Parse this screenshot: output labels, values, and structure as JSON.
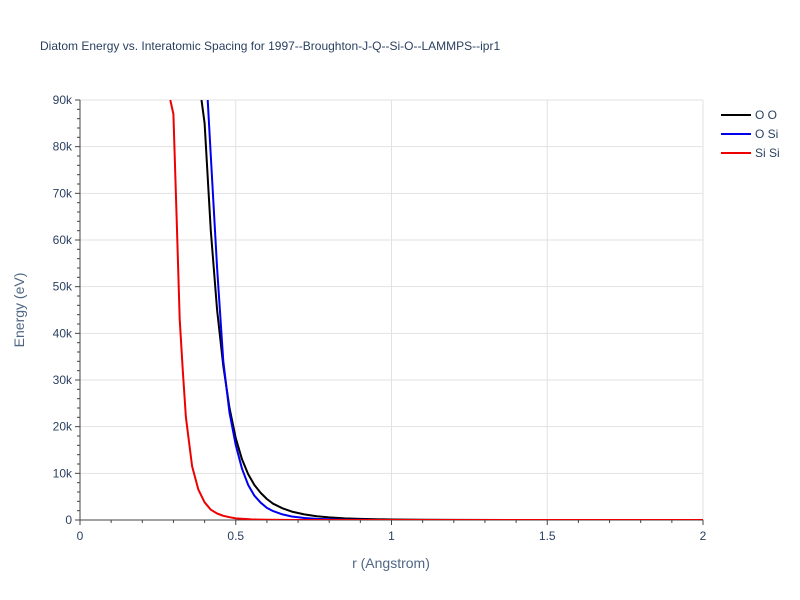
{
  "chart_data": {
    "type": "line",
    "title": "Diatom Energy vs. Interatomic Spacing for 1997--Broughton-J-Q--Si-O--LAMMPS--ipr1",
    "xlabel": "r (Angstrom)",
    "ylabel": "Energy (eV)",
    "xlim": [
      0,
      2
    ],
    "ylim": [
      0,
      90000
    ],
    "x_ticks": [
      0,
      0.5,
      1,
      1.5,
      2
    ],
    "x_tick_labels": [
      "0",
      "0.5",
      "1",
      "1.5",
      "2"
    ],
    "y_ticks": [
      0,
      10000,
      20000,
      30000,
      40000,
      50000,
      60000,
      70000,
      80000,
      90000
    ],
    "y_tick_labels": [
      "0",
      "10k",
      "20k",
      "30k",
      "40k",
      "50k",
      "60k",
      "70k",
      "80k",
      "90k"
    ],
    "grid": true,
    "legend_position": "top-right",
    "series": [
      {
        "name": "O O",
        "color": "#000000",
        "x": [
          0.39,
          0.4,
          0.42,
          0.44,
          0.46,
          0.48,
          0.5,
          0.52,
          0.54,
          0.56,
          0.58,
          0.6,
          0.62,
          0.65,
          0.68,
          0.72,
          0.76,
          0.8,
          0.85,
          0.9,
          1.0,
          1.1,
          1.2,
          1.4,
          1.6,
          1.8,
          2.0
        ],
        "y": [
          90000,
          85000,
          62000,
          45000,
          33000,
          24000,
          17500,
          13000,
          9800,
          7500,
          5800,
          4500,
          3500,
          2500,
          1800,
          1200,
          800,
          550,
          350,
          230,
          110,
          55,
          30,
          10,
          4,
          2,
          1
        ]
      },
      {
        "name": "O Si",
        "color": "#0000ee",
        "x": [
          0.41,
          0.42,
          0.44,
          0.46,
          0.48,
          0.5,
          0.52,
          0.54,
          0.56,
          0.58,
          0.6,
          0.62,
          0.65,
          0.68,
          0.72,
          0.76,
          0.8,
          0.85,
          0.9,
          1.0,
          1.1,
          1.2,
          1.4,
          1.6,
          1.8,
          2.0
        ],
        "y": [
          90000,
          78000,
          54000,
          34000,
          23000,
          16000,
          11000,
          7500,
          5200,
          3700,
          2600,
          1900,
          1200,
          750,
          420,
          240,
          140,
          70,
          35,
          10,
          3,
          1,
          0,
          0,
          0,
          0
        ]
      },
      {
        "name": "Si Si",
        "color": "#ee0000",
        "x": [
          0.29,
          0.3,
          0.31,
          0.32,
          0.33,
          0.34,
          0.36,
          0.38,
          0.4,
          0.42,
          0.44,
          0.46,
          0.48,
          0.5,
          0.55,
          0.6,
          0.7,
          0.8,
          1.0,
          1.2,
          1.5,
          2.0
        ],
        "y": [
          90000,
          87000,
          65000,
          43000,
          32000,
          22000,
          11500,
          6500,
          3800,
          2200,
          1400,
          900,
          600,
          350,
          120,
          40,
          5,
          1,
          0,
          0,
          0,
          0
        ]
      }
    ]
  }
}
